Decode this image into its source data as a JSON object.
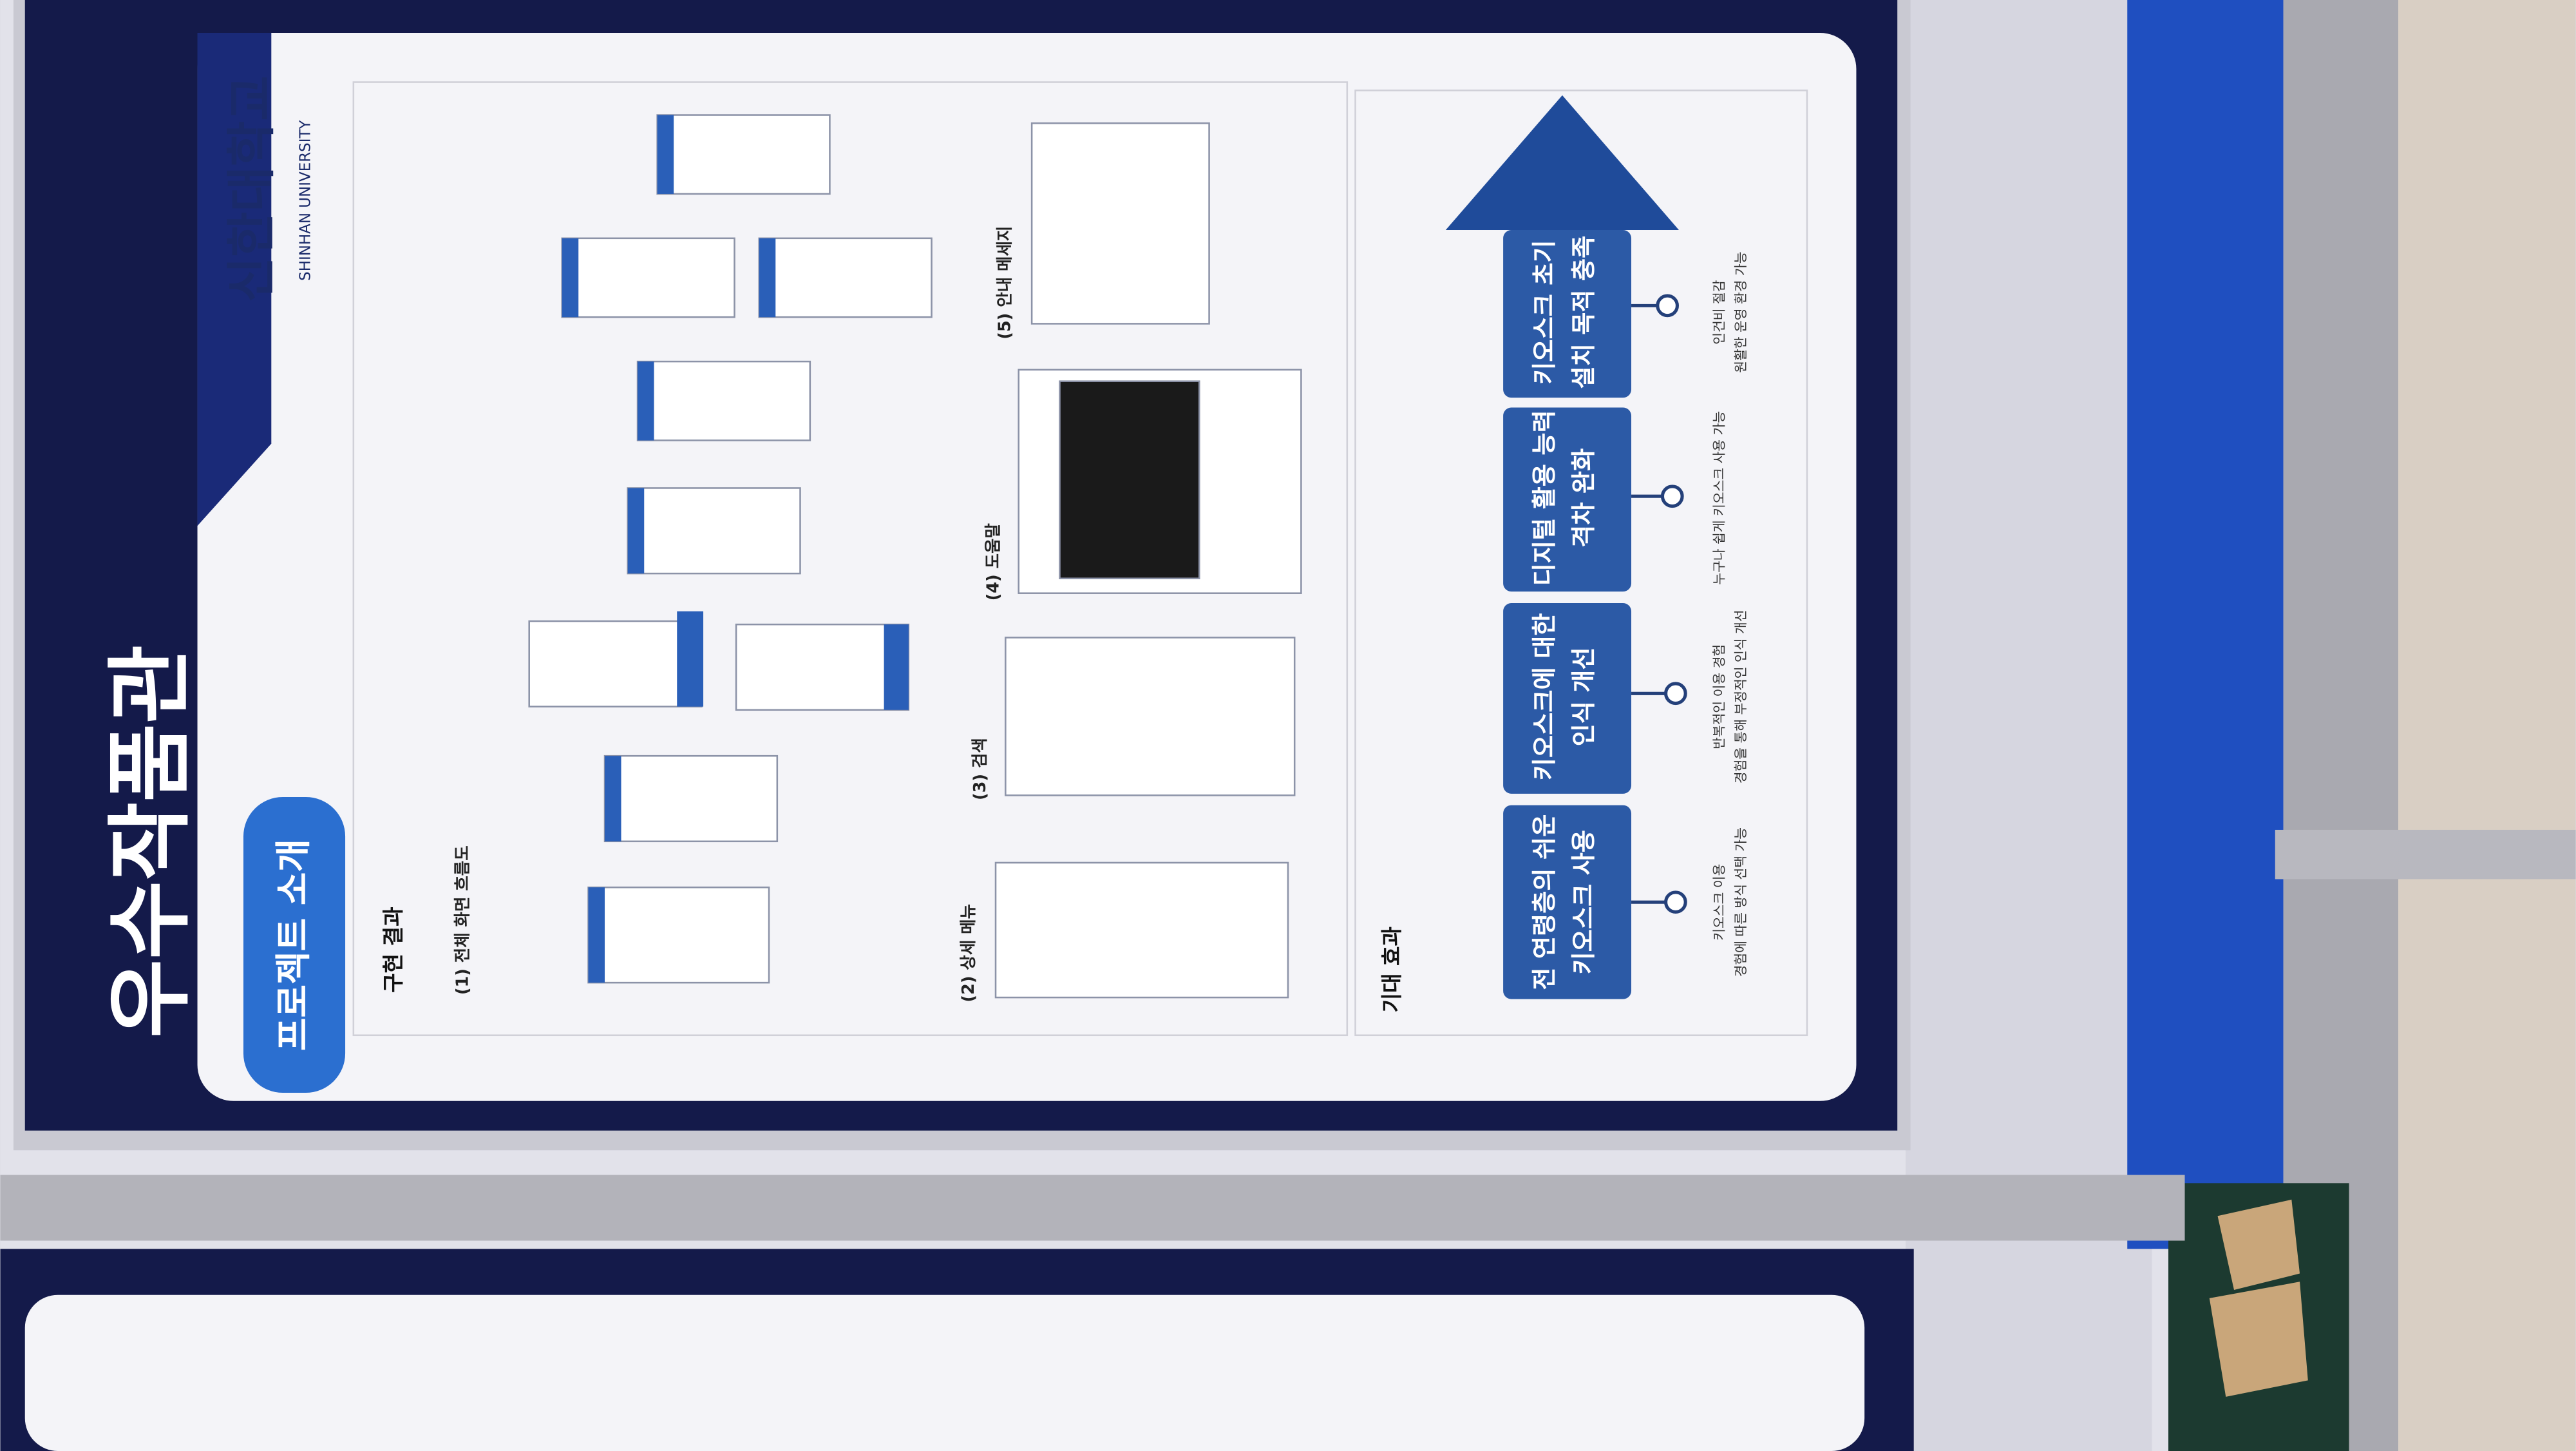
{
  "poster": {
    "title": "우수작품관",
    "university": "신한대학교",
    "university_en": "SHINHAN UNIVERSITY",
    "tab": "프로젝트 소개",
    "results": {
      "heading": "구현 결과",
      "items": [
        "(1) 전체 화면 흐름도",
        "(2) 상세 메뉴",
        "(3) 검색",
        "(4) 도움말",
        "(5) 안내 메세지"
      ]
    },
    "effects": {
      "heading": "기대 효과",
      "items": [
        {
          "lines": [
            "전 연령층의 쉬운",
            "키오스크 사용"
          ],
          "caption": [
            "키오스크 이용",
            "경험에 따른 방식 선택 가능"
          ]
        },
        {
          "lines": [
            "키오스크에 대한",
            "인식 개선"
          ],
          "caption": [
            "반복적인 이용 경험",
            "경험을 통해 부정적인 인식 개선"
          ]
        },
        {
          "lines": [
            "디지털 활용 능력",
            "격차 완화"
          ],
          "caption": [
            "누구나 쉽게 키오스크 사용 가능"
          ]
        },
        {
          "lines": [
            "키오스크 초기",
            "설치 목적 충족"
          ],
          "caption": [
            "인건비 절감",
            "원활한 운영 환경 가능"
          ]
        }
      ]
    }
  }
}
